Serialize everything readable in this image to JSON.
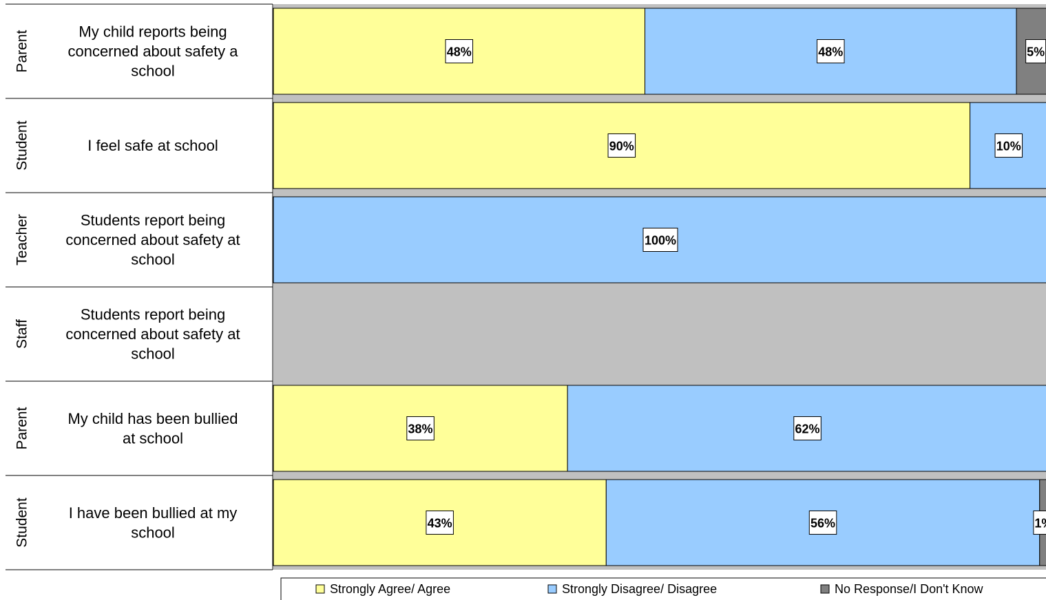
{
  "chart_data": {
    "type": "bar",
    "orientation": "horizontal",
    "stacked": true,
    "rows": [
      {
        "group": "Parent",
        "question": [
          "My child reports being",
          "concerned about  safety a",
          "school"
        ],
        "values": [
          48,
          48,
          5
        ],
        "labels": [
          "48%",
          "48%",
          "5%"
        ]
      },
      {
        "group": "Student",
        "question": [
          "I feel safe at school"
        ],
        "values": [
          90,
          10,
          0
        ],
        "labels": [
          "90%",
          "10%",
          ""
        ]
      },
      {
        "group": "Teacher",
        "question": [
          "Students report being",
          "concerned about safety at",
          "school"
        ],
        "values": [
          0,
          100,
          0
        ],
        "labels": [
          "",
          "100%",
          ""
        ]
      },
      {
        "group": "Staff",
        "question": [
          "Students report being",
          "concerned about safety at",
          "school"
        ],
        "values": [
          0,
          0,
          0
        ],
        "labels": [
          "",
          "",
          ""
        ]
      },
      {
        "group": "Parent",
        "question": [
          "My child has been bullied",
          "at school"
        ],
        "values": [
          38,
          62,
          0
        ],
        "labels": [
          "38%",
          "62%",
          ""
        ]
      },
      {
        "group": "Student",
        "question": [
          "I have been bullied at my",
          "school"
        ],
        "values": [
          43,
          56,
          1
        ],
        "labels": [
          "43%",
          "56%",
          "1%"
        ]
      }
    ],
    "series": [
      {
        "name": "Strongly Agree/ Agree",
        "color": "#FFFF99"
      },
      {
        "name": "Strongly Disagree/ Disagree",
        "color": "#99CCFF"
      },
      {
        "name": "No Response/I Don't Know",
        "color": "#808080"
      }
    ],
    "xlim": [
      0,
      100
    ],
    "legend_position": "bottom",
    "plot_background": "#C0C0C0"
  }
}
